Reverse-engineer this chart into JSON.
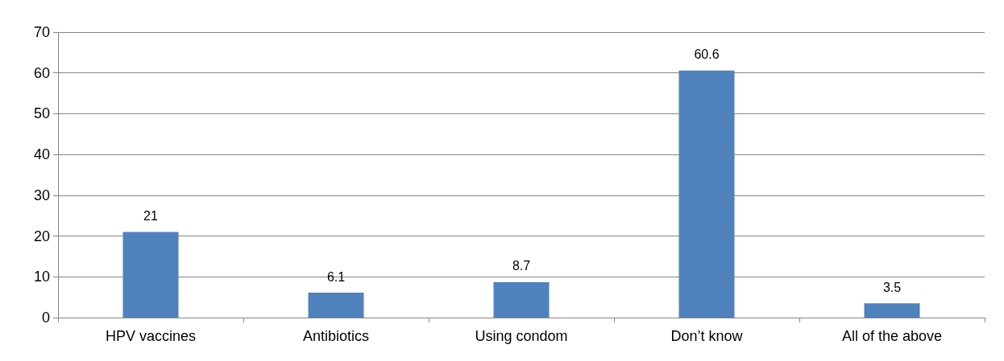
{
  "chart_data": {
    "type": "bar",
    "categories": [
      "HPV vaccines",
      "Antibiotics",
      "Using condom",
      "Don’t know",
      "All of the above"
    ],
    "values": [
      21,
      6.1,
      8.7,
      60.6,
      3.5
    ],
    "color": "#4f81bd",
    "ylim": [
      0,
      70
    ],
    "yticks": [
      0,
      10,
      20,
      30,
      40,
      50,
      60,
      70
    ],
    "grid": "y",
    "data_labels": true
  }
}
